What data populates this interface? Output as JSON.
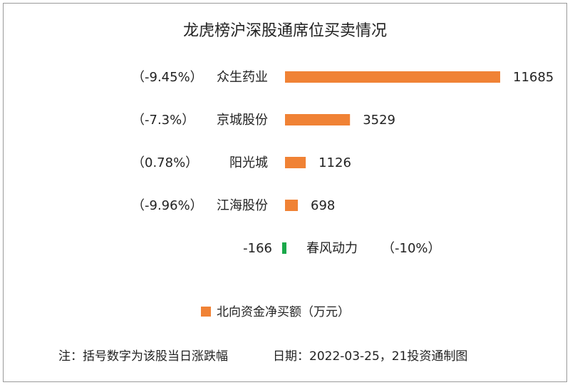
{
  "chart_data": {
    "type": "bar",
    "orientation": "horizontal",
    "title": "龙虎榜沪深股通席位买卖情况",
    "categories": [
      "众生药业",
      "京城股份",
      "阳光城",
      "江海股份",
      "春风动力"
    ],
    "change_labels": [
      "（-9.45%）",
      "（-7.3%）",
      "（0.78%）",
      "（-9.96%）",
      "（-10%）"
    ],
    "series": [
      {
        "name": "北向资金净买额（万元）",
        "values": [
          11685,
          3529,
          1126,
          698,
          -166
        ],
        "positive_color": "#f08235",
        "negative_color": "#1aa84a"
      }
    ],
    "legend_position": "bottom",
    "grid": false
  },
  "footer": {
    "note": "注：括号数字为该股当日涨跌幅",
    "date_source": "日期：2022-03-25，21投资通制图"
  }
}
